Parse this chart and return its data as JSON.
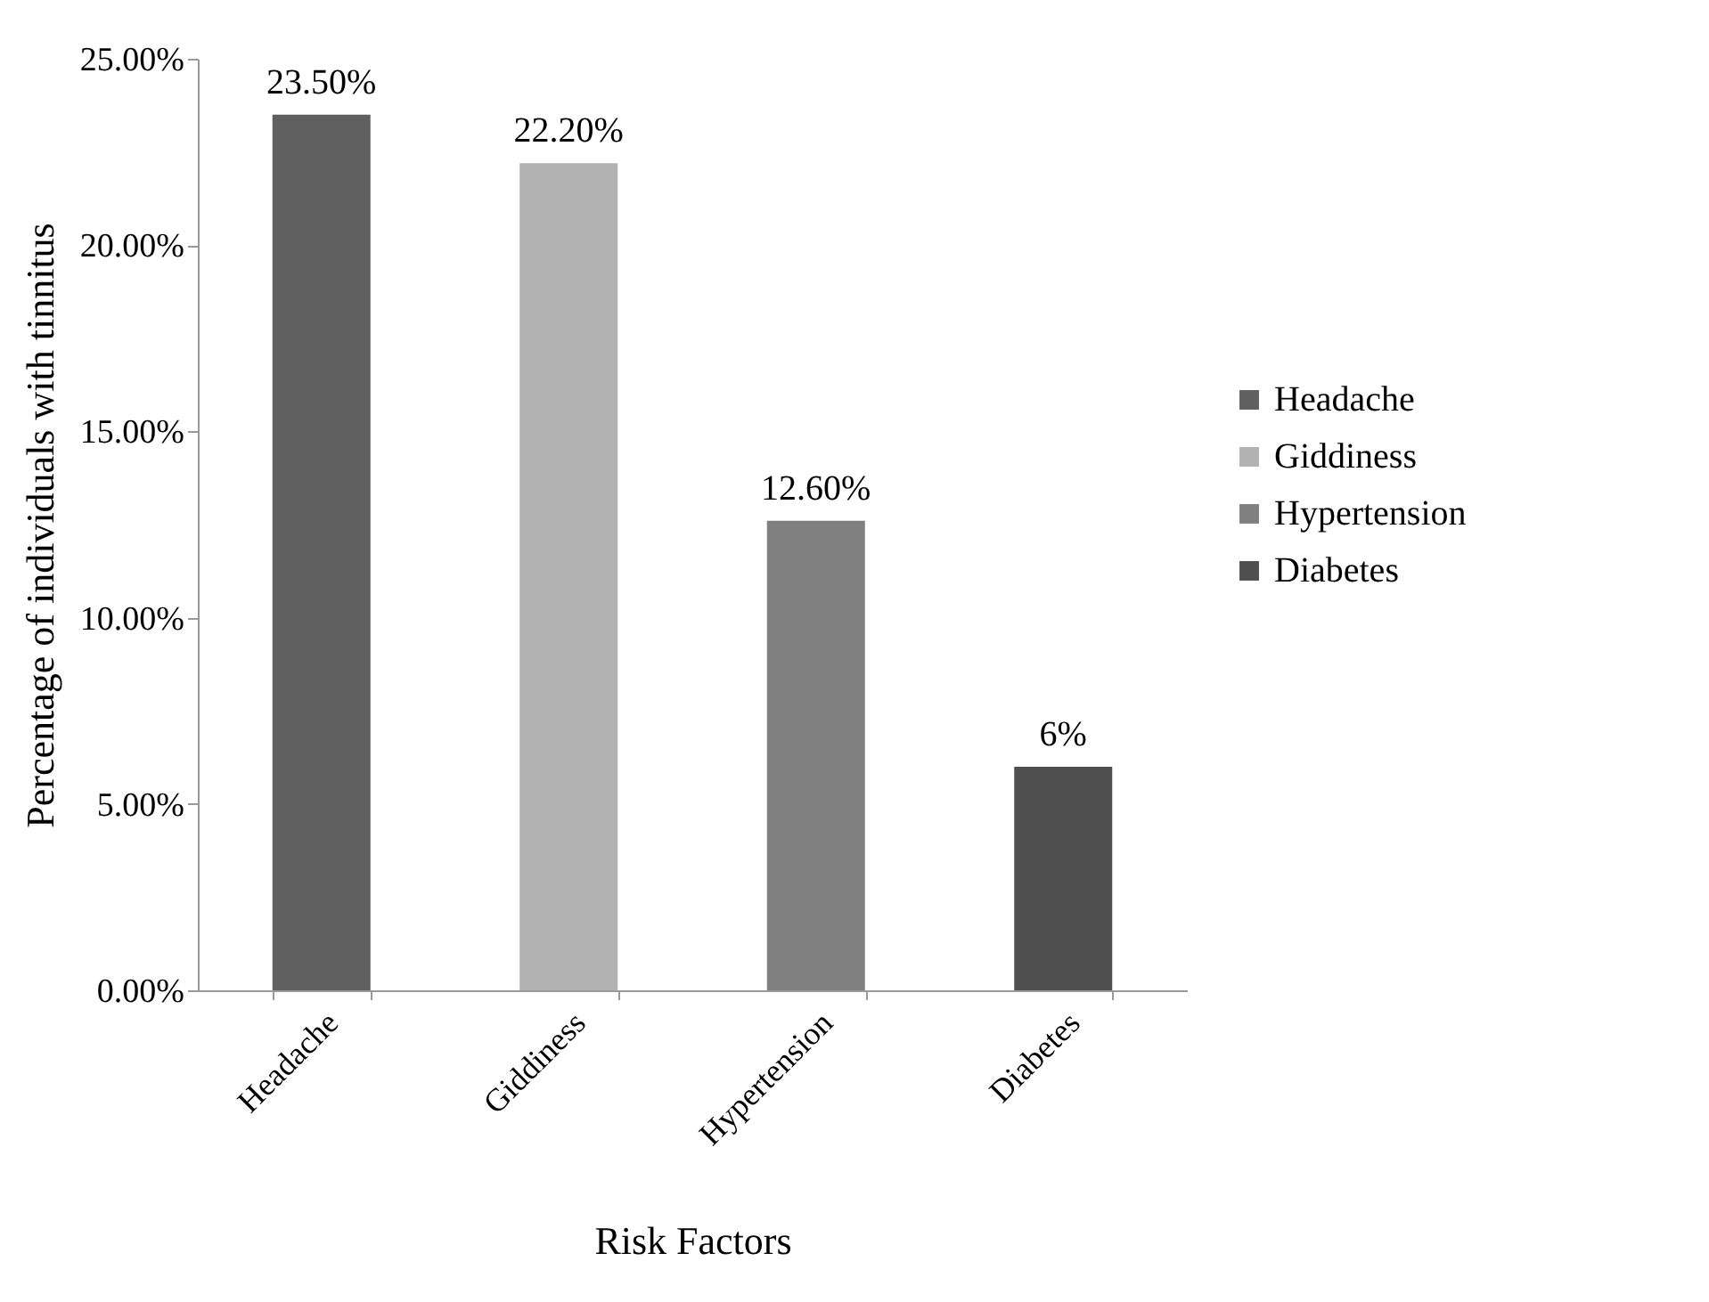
{
  "chart_data": {
    "type": "bar",
    "xlabel": "Risk Factors",
    "ylabel": "Percentage of individuals with tinnitus",
    "categories": [
      "Headache",
      "Giddiness",
      "Hypertension",
      "Diabetes"
    ],
    "series": [
      {
        "name": "Headache",
        "color": "#606060",
        "values": [
          23.5,
          null,
          null,
          null
        ],
        "value_labels": [
          "23.50%",
          null,
          null,
          null
        ]
      },
      {
        "name": "Giddiness",
        "color": "#b2b2b2",
        "values": [
          null,
          22.2,
          null,
          null
        ],
        "value_labels": [
          null,
          "22.20%",
          null,
          null
        ]
      },
      {
        "name": "Hypertension",
        "color": "#808080",
        "values": [
          null,
          null,
          12.6,
          null
        ],
        "value_labels": [
          null,
          null,
          "12.60%",
          null
        ]
      },
      {
        "name": "Diabetes",
        "color": "#4f4f4f",
        "values": [
          null,
          null,
          null,
          6
        ],
        "value_labels": [
          null,
          null,
          null,
          "6%"
        ]
      }
    ],
    "ylim": [
      0,
      25
    ],
    "yticks": [
      {
        "value": 0,
        "label": "0.00%"
      },
      {
        "value": 5,
        "label": "5.00%"
      },
      {
        "value": 10,
        "label": "10.00%"
      },
      {
        "value": 15,
        "label": "15.00%"
      },
      {
        "value": 20,
        "label": "20.00%"
      },
      {
        "value": 25,
        "label": "25.00%"
      }
    ],
    "grid": false,
    "legend": "right"
  }
}
